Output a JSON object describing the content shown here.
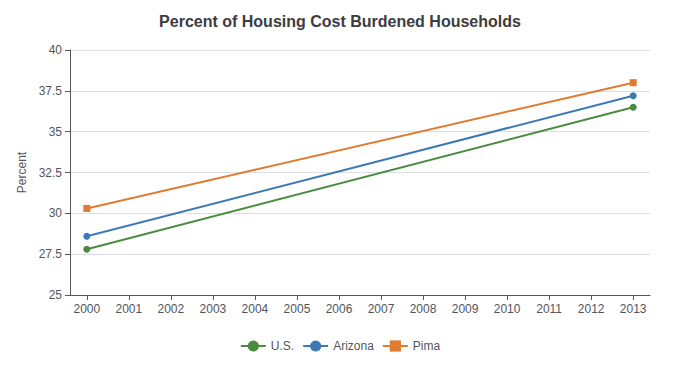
{
  "chart_data": {
    "type": "line",
    "title": "Percent of Housing Cost Burdened Households",
    "ylabel": "Percent",
    "x": [
      2000,
      2013
    ],
    "xlim": [
      1999.6,
      2013.4
    ],
    "xticks": [
      2000,
      2001,
      2002,
      2003,
      2004,
      2005,
      2006,
      2007,
      2008,
      2009,
      2010,
      2011,
      2012,
      2013
    ],
    "ylim": [
      25,
      40
    ],
    "yticks": [
      25,
      27.5,
      30,
      32.5,
      35,
      37.5,
      40
    ],
    "grid": true,
    "legend": "bottom",
    "series": [
      {
        "name": "U.S.",
        "color": "#4a8c3f",
        "marker": "circle",
        "values": [
          27.8,
          36.5
        ]
      },
      {
        "name": "Arizona",
        "color": "#3d7ab5",
        "marker": "circle",
        "values": [
          28.6,
          37.2
        ]
      },
      {
        "name": "Pima",
        "color": "#e07b30",
        "marker": "square",
        "values": [
          30.3,
          38.0
        ]
      }
    ]
  }
}
